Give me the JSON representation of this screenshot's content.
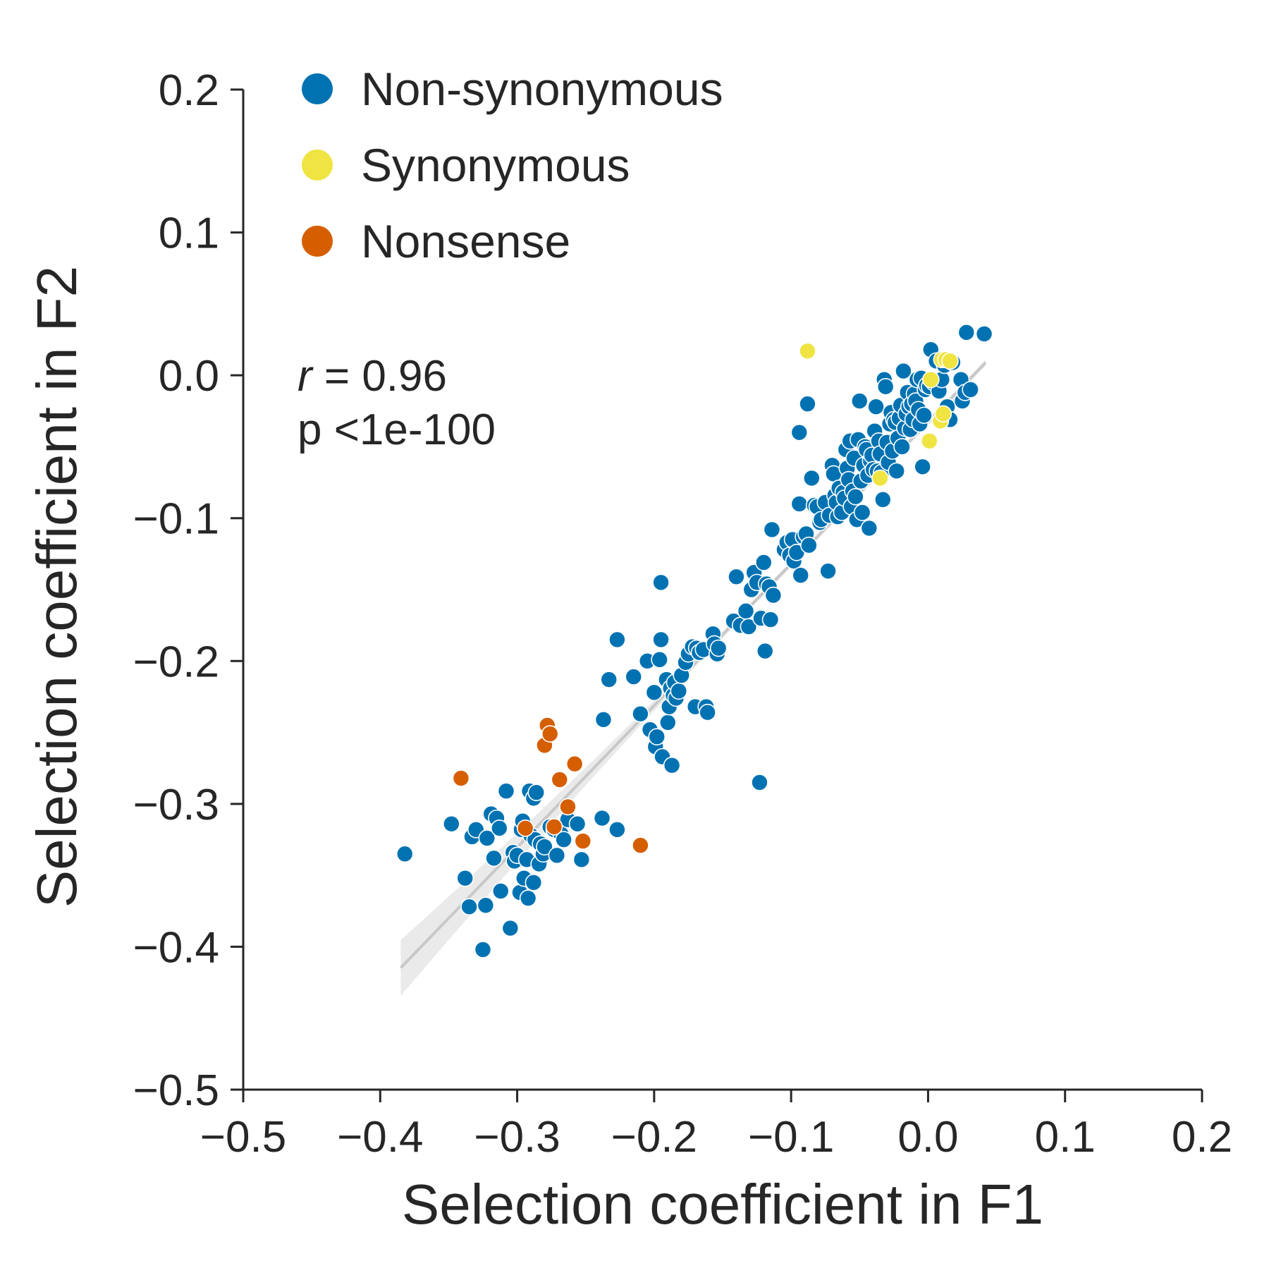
{
  "chart_data": {
    "type": "scatter",
    "xlabel": "Selection coefficient in F1",
    "ylabel": "Selection coefficient in F2",
    "xlim": [
      -0.5,
      0.2
    ],
    "ylim": [
      -0.5,
      0.2
    ],
    "xticks": [
      -0.5,
      -0.4,
      -0.3,
      -0.2,
      -0.1,
      0.0,
      0.1,
      0.2
    ],
    "yticks": [
      -0.5,
      -0.4,
      -0.3,
      -0.2,
      -0.1,
      0.0,
      0.1,
      0.2
    ],
    "xtick_labels": [
      "−0.5",
      "−0.4",
      "−0.3",
      "−0.2",
      "−0.1",
      "0.0",
      "0.1",
      "0.2"
    ],
    "ytick_labels": [
      "−0.5",
      "−0.4",
      "−0.3",
      "−0.2",
      "−0.1",
      "0.0",
      "0.1",
      "0.2"
    ],
    "grid": false,
    "legend_position": "top-left",
    "annotation": {
      "r_symbol": "r",
      "r_text": " = 0.96",
      "p_text": "p <1e-100"
    },
    "regression": {
      "color": "#c8c8c8",
      "band_color": "#e6e6e6",
      "x_range": [
        -0.385,
        0.042
      ],
      "slope": 0.992,
      "intercept": -0.0328
    },
    "series": [
      {
        "name": "Non-synonymous",
        "color": "#0072b2",
        "points": [
          [
            -0.382,
            -0.335
          ],
          [
            -0.348,
            -0.314
          ],
          [
            -0.338,
            -0.352
          ],
          [
            -0.335,
            -0.372
          ],
          [
            -0.333,
            -0.323
          ],
          [
            -0.33,
            -0.318
          ],
          [
            -0.325,
            -0.402
          ],
          [
            -0.323,
            -0.371
          ],
          [
            -0.322,
            -0.324
          ],
          [
            -0.319,
            -0.307
          ],
          [
            -0.317,
            -0.338
          ],
          [
            -0.315,
            -0.31
          ],
          [
            -0.313,
            -0.317
          ],
          [
            -0.312,
            -0.361
          ],
          [
            -0.308,
            -0.291
          ],
          [
            -0.305,
            -0.387
          ],
          [
            -0.303,
            -0.334
          ],
          [
            -0.302,
            -0.34
          ],
          [
            -0.3,
            -0.336
          ],
          [
            -0.298,
            -0.362
          ],
          [
            -0.297,
            -0.318
          ],
          [
            -0.296,
            -0.312
          ],
          [
            -0.295,
            -0.352
          ],
          [
            -0.293,
            -0.339
          ],
          [
            -0.292,
            -0.366
          ],
          [
            -0.291,
            -0.291
          ],
          [
            -0.29,
            -0.322
          ],
          [
            -0.288,
            -0.296
          ],
          [
            -0.288,
            -0.355
          ],
          [
            -0.287,
            -0.325
          ],
          [
            -0.286,
            -0.292
          ],
          [
            -0.284,
            -0.342
          ],
          [
            -0.283,
            -0.328
          ],
          [
            -0.281,
            -0.335
          ],
          [
            -0.28,
            -0.33
          ],
          [
            -0.276,
            -0.316
          ],
          [
            -0.273,
            -0.318
          ],
          [
            -0.271,
            -0.336
          ],
          [
            -0.268,
            -0.321
          ],
          [
            -0.266,
            -0.325
          ],
          [
            -0.263,
            -0.311
          ],
          [
            -0.256,
            -0.314
          ],
          [
            -0.253,
            -0.339
          ],
          [
            -0.238,
            -0.31
          ],
          [
            -0.237,
            -0.241
          ],
          [
            -0.233,
            -0.213
          ],
          [
            -0.227,
            -0.318
          ],
          [
            -0.227,
            -0.185
          ],
          [
            -0.215,
            -0.211
          ],
          [
            -0.21,
            -0.237
          ],
          [
            -0.205,
            -0.2
          ],
          [
            -0.203,
            -0.248
          ],
          [
            -0.2,
            -0.222
          ],
          [
            -0.199,
            -0.26
          ],
          [
            -0.198,
            -0.253
          ],
          [
            -0.196,
            -0.199
          ],
          [
            -0.195,
            -0.145
          ],
          [
            -0.195,
            -0.185
          ],
          [
            -0.194,
            -0.267
          ],
          [
            -0.191,
            -0.213
          ],
          [
            -0.19,
            -0.243
          ],
          [
            -0.189,
            -0.232
          ],
          [
            -0.188,
            -0.219
          ],
          [
            -0.187,
            -0.273
          ],
          [
            -0.186,
            -0.224
          ],
          [
            -0.185,
            -0.215
          ],
          [
            -0.184,
            -0.226
          ],
          [
            -0.182,
            -0.221
          ],
          [
            -0.18,
            -0.21
          ],
          [
            -0.177,
            -0.201
          ],
          [
            -0.175,
            -0.195
          ],
          [
            -0.172,
            -0.19
          ],
          [
            -0.17,
            -0.232
          ],
          [
            -0.169,
            -0.191
          ],
          [
            -0.167,
            -0.194
          ],
          [
            -0.164,
            -0.192
          ],
          [
            -0.162,
            -0.232
          ],
          [
            -0.161,
            -0.236
          ],
          [
            -0.157,
            -0.181
          ],
          [
            -0.156,
            -0.188
          ],
          [
            -0.154,
            -0.195
          ],
          [
            -0.153,
            -0.191
          ],
          [
            -0.142,
            -0.172
          ],
          [
            -0.14,
            -0.141
          ],
          [
            -0.137,
            -0.175
          ],
          [
            -0.133,
            -0.165
          ],
          [
            -0.131,
            -0.176
          ],
          [
            -0.129,
            -0.15
          ],
          [
            -0.127,
            -0.138
          ],
          [
            -0.125,
            -0.145
          ],
          [
            -0.123,
            -0.285
          ],
          [
            -0.122,
            -0.17
          ],
          [
            -0.12,
            -0.131
          ],
          [
            -0.119,
            -0.193
          ],
          [
            -0.118,
            -0.146
          ],
          [
            -0.116,
            -0.148
          ],
          [
            -0.115,
            -0.171
          ],
          [
            -0.114,
            -0.108
          ],
          [
            -0.113,
            -0.154
          ],
          [
            -0.105,
            -0.122
          ],
          [
            -0.103,
            -0.117
          ],
          [
            -0.101,
            -0.126
          ],
          [
            -0.099,
            -0.115
          ],
          [
            -0.098,
            -0.13
          ],
          [
            -0.096,
            -0.124
          ],
          [
            -0.094,
            -0.09
          ],
          [
            -0.094,
            -0.04
          ],
          [
            -0.093,
            -0.14
          ],
          [
            -0.091,
            -0.113
          ],
          [
            -0.089,
            -0.111
          ],
          [
            -0.088,
            -0.02
          ],
          [
            -0.087,
            -0.119
          ],
          [
            -0.085,
            -0.072
          ],
          [
            -0.083,
            -0.091
          ],
          [
            -0.081,
            -0.092
          ],
          [
            -0.079,
            -0.103
          ],
          [
            -0.078,
            -0.101
          ],
          [
            -0.075,
            -0.089
          ],
          [
            -0.073,
            -0.137
          ],
          [
            -0.072,
            -0.098
          ],
          [
            -0.07,
            -0.063
          ],
          [
            -0.069,
            -0.069
          ],
          [
            -0.068,
            -0.084
          ],
          [
            -0.067,
            -0.089
          ],
          [
            -0.066,
            -0.099
          ],
          [
            -0.065,
            -0.079
          ],
          [
            -0.063,
            -0.096
          ],
          [
            -0.062,
            -0.082
          ],
          [
            -0.061,
            -0.086
          ],
          [
            -0.06,
            -0.052
          ],
          [
            -0.059,
            -0.065
          ],
          [
            -0.058,
            -0.073
          ],
          [
            -0.057,
            -0.046
          ],
          [
            -0.056,
            -0.092
          ],
          [
            -0.055,
            -0.081
          ],
          [
            -0.054,
            -0.058
          ],
          [
            -0.053,
            -0.085
          ],
          [
            -0.052,
            -0.101
          ],
          [
            -0.051,
            -0.045
          ],
          [
            -0.05,
            -0.018
          ],
          [
            -0.049,
            -0.074
          ],
          [
            -0.048,
            -0.096
          ],
          [
            -0.047,
            -0.063
          ],
          [
            -0.046,
            -0.05
          ],
          [
            -0.045,
            -0.052
          ],
          [
            -0.044,
            -0.07
          ],
          [
            -0.043,
            -0.107
          ],
          [
            -0.042,
            -0.06
          ],
          [
            -0.041,
            -0.056
          ],
          [
            -0.04,
            -0.066
          ],
          [
            -0.039,
            -0.039
          ],
          [
            -0.038,
            -0.022
          ],
          [
            -0.037,
            -0.067
          ],
          [
            -0.036,
            -0.046
          ],
          [
            -0.035,
            -0.055
          ],
          [
            -0.034,
            -0.068
          ],
          [
            -0.033,
            -0.087
          ],
          [
            -0.032,
            -0.003
          ],
          [
            -0.031,
            -0.008
          ],
          [
            -0.03,
            -0.047
          ],
          [
            -0.029,
            -0.061
          ],
          [
            -0.028,
            -0.034
          ],
          [
            -0.027,
            -0.026
          ],
          [
            -0.026,
            -0.053
          ],
          [
            -0.025,
            -0.031
          ],
          [
            -0.024,
            -0.033
          ],
          [
            -0.023,
            -0.067
          ],
          [
            -0.022,
            -0.044
          ],
          [
            -0.021,
            -0.03
          ],
          [
            -0.02,
            -0.021
          ],
          [
            -0.019,
            -0.05
          ],
          [
            -0.018,
            0.003
          ],
          [
            -0.017,
            -0.037
          ],
          [
            -0.016,
            -0.027
          ],
          [
            -0.015,
            -0.012
          ],
          [
            -0.014,
            -0.022
          ],
          [
            -0.013,
            -0.038
          ],
          [
            -0.012,
            -0.02
          ],
          [
            -0.011,
            -0.031
          ],
          [
            -0.01,
            -0.013
          ],
          [
            -0.009,
            -0.018
          ],
          [
            -0.008,
            -0.003
          ],
          [
            -0.007,
            -0.024
          ],
          [
            -0.006,
            -0.034
          ],
          [
            -0.005,
            -0.002
          ],
          [
            -0.004,
            -0.064
          ],
          [
            -0.003,
            -0.028
          ],
          [
            -0.002,
            -0.01
          ],
          [
            -0.001,
            -0.007
          ],
          [
            0.001,
            -0.008
          ],
          [
            0.002,
            0.018
          ],
          [
            0.004,
            -0.005
          ],
          [
            0.006,
            0.01
          ],
          [
            0.008,
            -0.011
          ],
          [
            0.01,
            -0.003
          ],
          [
            0.012,
            0.007
          ],
          [
            0.014,
            -0.022
          ],
          [
            0.016,
            -0.031
          ],
          [
            0.018,
            0.009
          ],
          [
            0.024,
            -0.003
          ],
          [
            0.025,
            -0.018
          ],
          [
            0.027,
            -0.012
          ],
          [
            0.028,
            0.03
          ],
          [
            0.031,
            -0.01
          ],
          [
            0.041,
            0.029
          ]
        ]
      },
      {
        "name": "Synonymous",
        "color": "#f0e442",
        "points": [
          [
            -0.088,
            0.017
          ],
          [
            -0.035,
            -0.072
          ],
          [
            0.001,
            -0.046
          ],
          [
            0.002,
            -0.003
          ],
          [
            0.009,
            -0.032
          ],
          [
            0.01,
            0.011
          ],
          [
            0.011,
            -0.027
          ],
          [
            0.013,
            0.011
          ],
          [
            0.016,
            0.01
          ]
        ]
      },
      {
        "name": "Nonsense",
        "color": "#d55e00",
        "points": [
          [
            -0.341,
            -0.282
          ],
          [
            -0.294,
            -0.317
          ],
          [
            -0.28,
            -0.259
          ],
          [
            -0.278,
            -0.245
          ],
          [
            -0.276,
            -0.251
          ],
          [
            -0.273,
            -0.316
          ],
          [
            -0.269,
            -0.283
          ],
          [
            -0.263,
            -0.302
          ],
          [
            -0.258,
            -0.272
          ],
          [
            -0.252,
            -0.326
          ],
          [
            -0.21,
            -0.329
          ]
        ]
      }
    ]
  }
}
